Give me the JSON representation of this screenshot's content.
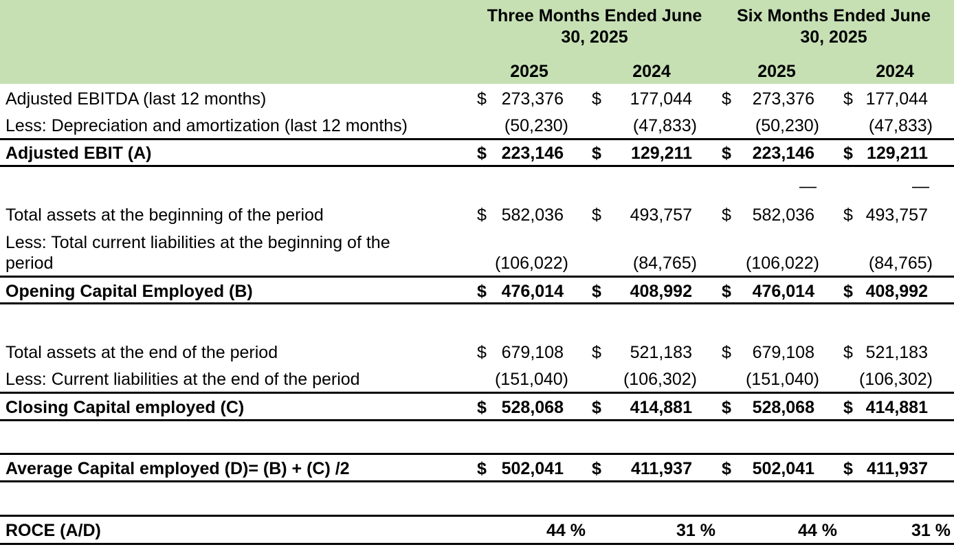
{
  "header": {
    "group1": "Three Months Ended June 30, 2025",
    "group2": "Six Months Ended June 30, 2025",
    "years": [
      "2025",
      "2024",
      "2025",
      "2024"
    ]
  },
  "currency_symbol": "$",
  "rows": {
    "adj_ebitda": {
      "label": "Adjusted EBITDA (last 12 months)",
      "values": [
        "273,376",
        "177,044",
        "273,376",
        "177,044"
      ]
    },
    "less_da": {
      "label": "Less: Depreciation and amortization (last 12 months)",
      "values": [
        "(50,230)",
        "(47,833)",
        "(50,230)",
        "(47,833)"
      ]
    },
    "adj_ebit": {
      "label": "Adjusted EBIT (A)",
      "values": [
        "223,146",
        "129,211",
        "223,146",
        "129,211"
      ]
    },
    "dash_row": {
      "values": [
        "—",
        "—"
      ]
    },
    "total_assets_begin": {
      "label": "Total assets at the beginning of the period",
      "values": [
        "582,036",
        "493,757",
        "582,036",
        "493,757"
      ]
    },
    "less_cl_begin": {
      "label_line1": "Less: Total current liabilities at the beginning of the",
      "label_line2": "period",
      "values": [
        "(106,022)",
        "(84,765)",
        "(106,022)",
        "(84,765)"
      ]
    },
    "opening_ce": {
      "label": "Opening Capital Employed (B)",
      "values": [
        "476,014",
        "408,992",
        "476,014",
        "408,992"
      ]
    },
    "total_assets_end": {
      "label": "Total assets at the end of the period",
      "values": [
        "679,108",
        "521,183",
        "679,108",
        "521,183"
      ]
    },
    "less_cl_end": {
      "label": "Less: Current liabilities at the end of the period",
      "values": [
        "(151,040)",
        "(106,302)",
        "(151,040)",
        "(106,302)"
      ]
    },
    "closing_ce": {
      "label": "Closing Capital employed (C)",
      "values": [
        "528,068",
        "414,881",
        "528,068",
        "414,881"
      ]
    },
    "avg_ce": {
      "label": "Average Capital employed (D)= (B) + (C) /2",
      "values": [
        "502,041",
        "411,937",
        "502,041",
        "411,937"
      ]
    },
    "roce": {
      "label": "ROCE (A/D)",
      "values": [
        "44 %",
        "31 %",
        "44 %",
        "31 %"
      ]
    }
  }
}
